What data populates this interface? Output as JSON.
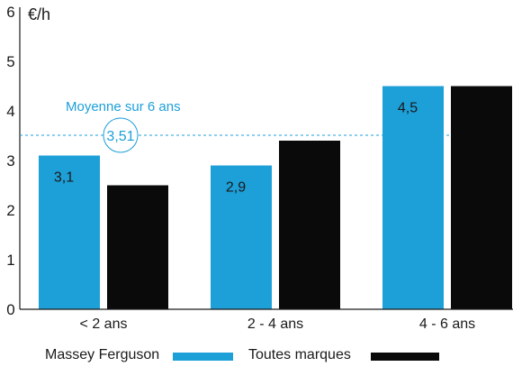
{
  "chart_data": {
    "type": "bar",
    "ylabel": "€/h",
    "ylim": [
      0,
      6
    ],
    "yticks": [
      0,
      1,
      2,
      3,
      4,
      5,
      6
    ],
    "categories": [
      "< 2 ans",
      "2 - 4 ans",
      "4 - 6 ans"
    ],
    "series": [
      {
        "name": "Massey Ferguson",
        "color": "#1d9fd8",
        "values": [
          3.1,
          2.9,
          4.5
        ],
        "labels": [
          "3,1",
          "2,9",
          "4,5"
        ]
      },
      {
        "name": "Toutes marques",
        "color": "#0a0a0a",
        "values": [
          2.5,
          3.4,
          4.5
        ]
      }
    ],
    "reference_line": {
      "label": "Moyenne sur 6 ans",
      "value": 3.51,
      "value_label": "3,51",
      "color": "#1d9fd8",
      "style": "dashed"
    },
    "legend_position": "bottom",
    "grid": false
  }
}
